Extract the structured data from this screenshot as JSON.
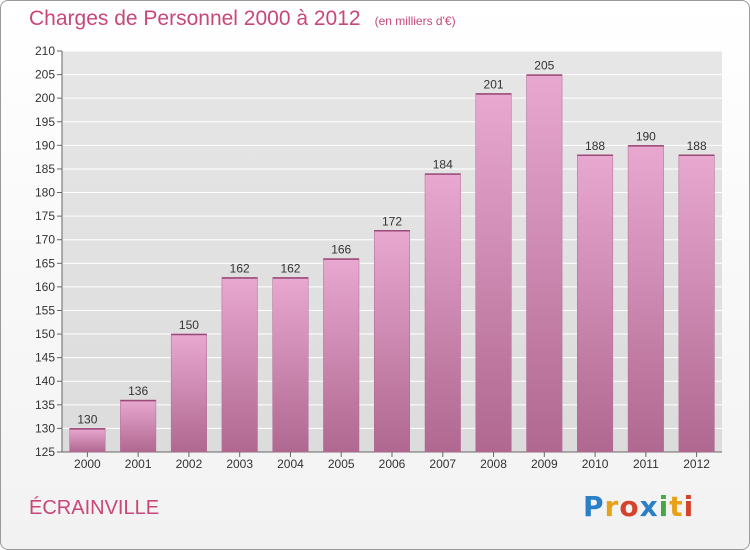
{
  "header": {
    "title": "Charges de Personnel 2000 à 2012",
    "subtitle": "(en milliers d'€)"
  },
  "footer": {
    "town": "ÉCRAINVILLE",
    "logo": "Proxiti"
  },
  "colors": {
    "accent": "#c8467a",
    "bar_top": "#e8a8d0",
    "bar_bottom": "#b06890"
  },
  "chart_data": {
    "type": "bar",
    "title": "Charges de Personnel 2000 à 2012",
    "subtitle": "(en milliers d'€)",
    "categories": [
      "2000",
      "2001",
      "2002",
      "2003",
      "2004",
      "2005",
      "2006",
      "2007",
      "2008",
      "2009",
      "2010",
      "2011",
      "2012"
    ],
    "values": [
      130,
      136,
      150,
      162,
      162,
      166,
      172,
      184,
      201,
      205,
      188,
      190,
      188
    ],
    "ylim": [
      125,
      210
    ],
    "yticks": [
      125,
      130,
      135,
      140,
      145,
      150,
      155,
      160,
      165,
      170,
      175,
      180,
      185,
      190,
      195,
      200,
      205,
      210
    ],
    "grid": true,
    "legend": "none"
  }
}
